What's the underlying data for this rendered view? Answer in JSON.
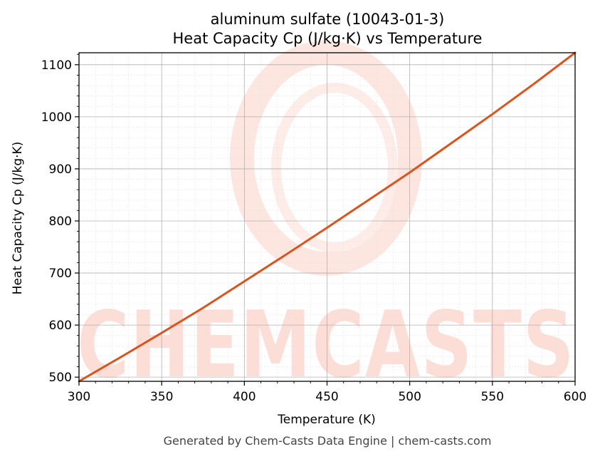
{
  "chart_data": {
    "type": "line",
    "title": "aluminum sulfate (10043-01-3)",
    "subtitle": "Heat Capacity Cp (J/kg·K) vs Temperature",
    "xlabel": "Temperature (K)",
    "ylabel": "Heat Capacity Cp (J/kg·K)",
    "xlim": [
      300,
      600
    ],
    "ylim": [
      492,
      1123
    ],
    "x_ticks": [
      300,
      350,
      400,
      450,
      500,
      550,
      600
    ],
    "y_ticks": [
      500,
      600,
      700,
      800,
      900,
      1000,
      1100
    ],
    "grid": true,
    "series": [
      {
        "color": "#d9541e",
        "x": [
          300,
          325,
          350,
          375,
          400,
          425,
          450,
          475,
          500,
          525,
          550,
          575,
          600
        ],
        "y": [
          492,
          538,
          585,
          633,
          684,
          735,
          787,
          840,
          893,
          949,
          1005,
          1063,
          1123
        ]
      }
    ]
  },
  "watermark": {
    "text": "CHEMCASTS",
    "color": "#fdd9d1"
  },
  "footer": "Generated by Chem-Casts Data Engine | chem-casts.com"
}
